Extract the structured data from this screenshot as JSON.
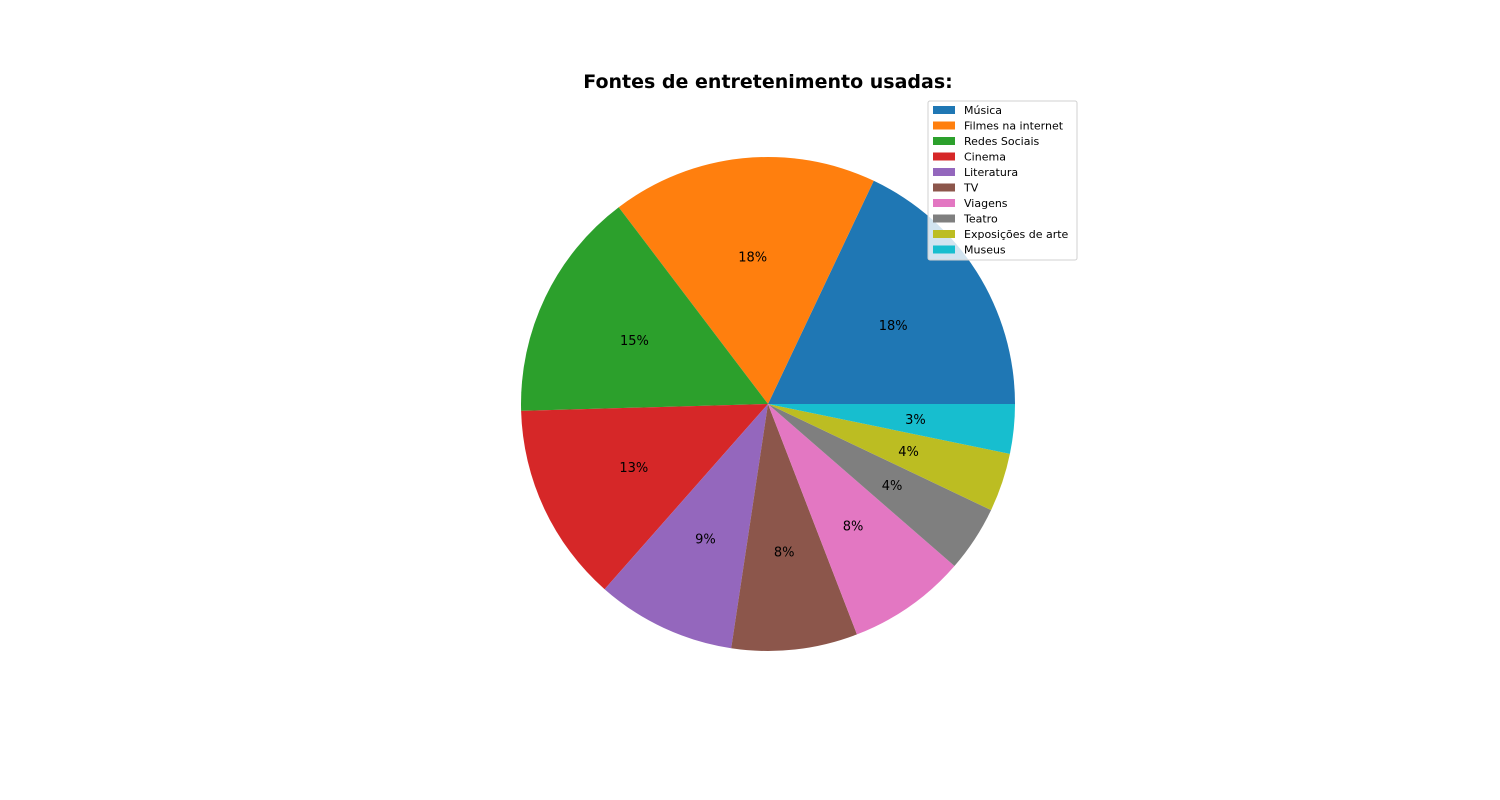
{
  "chart_data": {
    "type": "pie",
    "title": "Fontes de entretenimento usadas:",
    "legend_position": "top-right",
    "start_angle_deg": 0,
    "direction": "counterclockwise",
    "slices": [
      {
        "label": "Música",
        "value": 18.3,
        "pct_label": "18%",
        "color": "#1f77b4"
      },
      {
        "label": "Filmes na internet",
        "value": 17.7,
        "pct_label": "18%",
        "color": "#ff7f0e"
      },
      {
        "label": "Redes Sociais",
        "value": 15.4,
        "pct_label": "15%",
        "color": "#2ca02c"
      },
      {
        "label": "Cinema",
        "value": 13.3,
        "pct_label": "13%",
        "color": "#d62728"
      },
      {
        "label": "Literatura",
        "value": 9.3,
        "pct_label": "9%",
        "color": "#9467bd"
      },
      {
        "label": "TV",
        "value": 8.4,
        "pct_label": "8%",
        "color": "#8c564b"
      },
      {
        "label": "Viagens",
        "value": 7.9,
        "pct_label": "8%",
        "color": "#e377c2"
      },
      {
        "label": "Teatro",
        "value": 4.4,
        "pct_label": "4%",
        "color": "#7f7f7f"
      },
      {
        "label": "Exposições de arte",
        "value": 3.9,
        "pct_label": "4%",
        "color": "#bcbd22"
      },
      {
        "label": "Museus",
        "value": 3.3,
        "pct_label": "3%",
        "color": "#17becf"
      }
    ]
  }
}
